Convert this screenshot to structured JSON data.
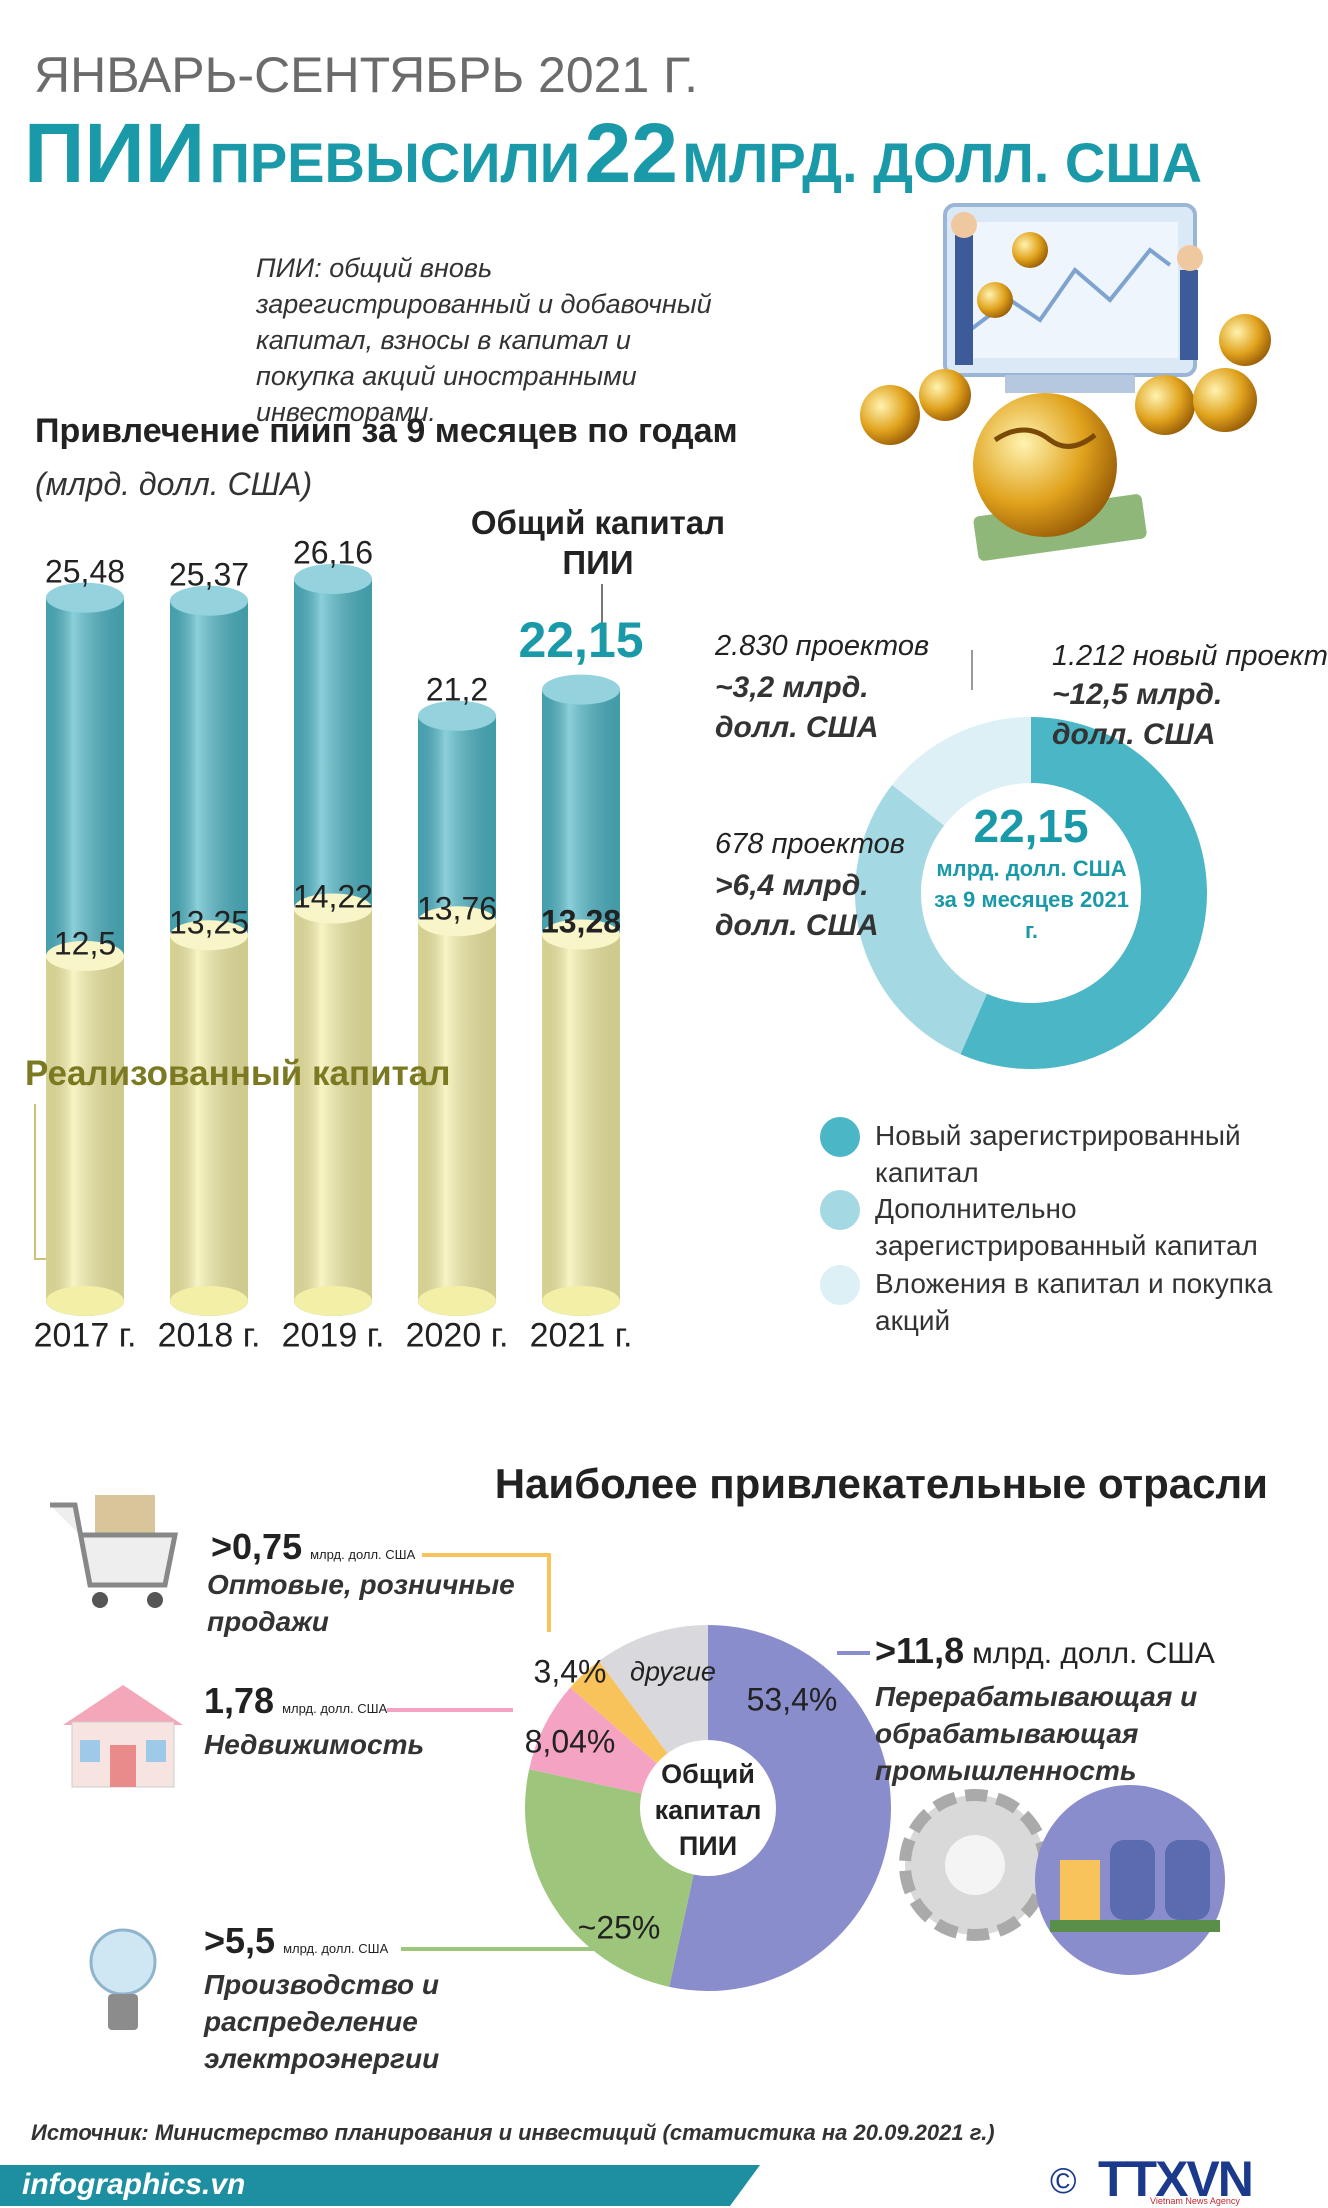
{
  "header": {
    "period": "ЯНВАРЬ-СЕНТЯБРЬ 2021 Г.",
    "title": [
      "ПИИ",
      "ПРЕВЫСИЛИ",
      "22",
      "МЛРД. ДОЛЛ. США"
    ]
  },
  "definition": "ПИИ: общий вновь зарегистрированный и добавочный капитал, взносы в капитал и покупка акций иностранными инвесторами.",
  "chart_data": [
    {
      "type": "bar",
      "title": "Привлечение пиип за 9 месяцев по годам",
      "subtitle": "(млрд. долл. США)",
      "categories": [
        "2017 г.",
        "2018 г.",
        "2019 г.",
        "2020 г.",
        "2021 г."
      ],
      "series": [
        {
          "name": "Общий капитал ПИИ",
          "color": "#4db6c6",
          "values": [
            25.48,
            25.37,
            26.16,
            21.2,
            22.15
          ],
          "value_labels": [
            "25,48",
            "25,37",
            "26,16",
            "21,2",
            "22,15"
          ]
        },
        {
          "name": "Реализованный капитал",
          "color": "#f4efa6",
          "values": [
            12.5,
            13.25,
            14.22,
            13.76,
            13.28
          ],
          "value_labels": [
            "12,5",
            "13,25",
            "14,22",
            "13,76",
            "13,28"
          ]
        }
      ],
      "ylim": [
        0,
        30
      ]
    },
    {
      "type": "donut",
      "center": {
        "value": "22,15",
        "text": "млрд. долл. США за 9 месяцев 2021 г."
      },
      "categories": [
        "Новый зарегистрированный капитал",
        "Дополнительно зарегистрированный капитал",
        "Вложения в капитал и покупка акций"
      ],
      "colors": [
        "#4ab6c6",
        "#a4d9e3",
        "#dcf0f5"
      ],
      "values": [
        12.5,
        6.4,
        3.2
      ],
      "value_labels": [
        "~12,5 млрд. долл. США",
        ">6,4 млрд. долл. США",
        "~3,2 млрд. долл. США"
      ],
      "projects": [
        "1.212 новый проект",
        "678 проектов",
        "2.830 проектов"
      ]
    },
    {
      "type": "pie",
      "title": "Наиболее привлекательные отрасли",
      "center": "Общий капитал ПИИ",
      "categories": [
        "Перерабатывающая и обрабатывающая промышленность",
        "Производство и распределение электроэнергии",
        "Недвижимость",
        "Оптовые, розничные продажи",
        "другие"
      ],
      "colors": [
        "#8a8dcb",
        "#9dc57b",
        "#f5a3c3",
        "#f9c35c",
        "#d8d8dd"
      ],
      "values": [
        53.4,
        25,
        8.04,
        3.4,
        10.16
      ],
      "value_labels": [
        "53,4%",
        "~25%",
        "8,04%",
        "3,4%",
        null
      ],
      "callouts": [
        {
          "amount": ">11,8",
          "unit": "млрд. долл. США"
        },
        {
          "amount": ">5,5",
          "unit": "млрд. долл. США"
        },
        {
          "amount": "1,78",
          "unit": "млрд. долл. США"
        },
        {
          "amount": ">0,75",
          "unit": "млрд. долл. США"
        }
      ]
    }
  ],
  "source": "Источник: Министерство планирования и инвестиций (статистика на 20.09.2021 г.)",
  "footer": {
    "site": "infographics.vn",
    "copyright": "©",
    "agency": "TTXVN",
    "agency_en": "Vietnam News Agency"
  }
}
